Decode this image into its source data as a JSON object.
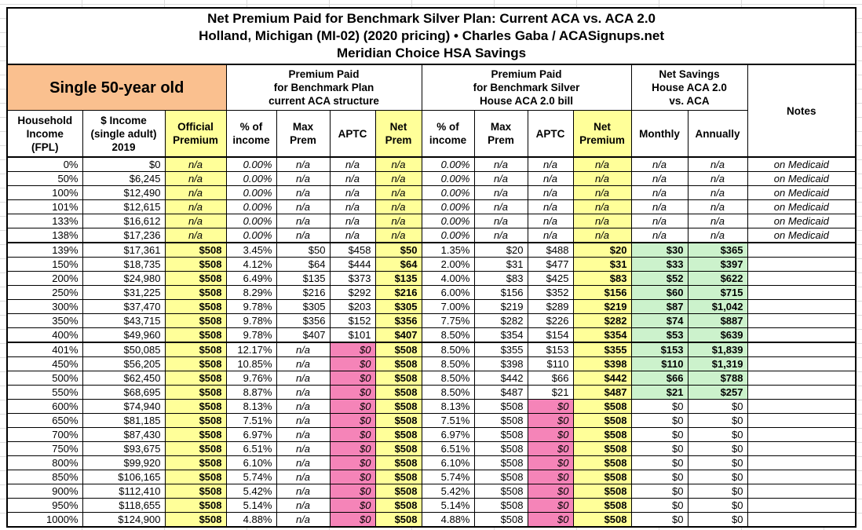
{
  "title": {
    "lines": [
      "Net Premium Paid for Benchmark Silver Plan: Current ACA vs. ACA 2.0",
      "Holland, Michigan (MI-02) (2020 pricing) • Charles Gaba / ACASignups.net",
      "Meridian Choice HSA Savings"
    ]
  },
  "colors": {
    "orange": "#FAC08F",
    "yellow": "#FFFF99",
    "pink": "#F584B8",
    "green": "#CCF2CC",
    "grid": "#dcdcdc",
    "border": "#000000"
  },
  "group_headers": [
    {
      "id": "subject",
      "lines": [
        "Single 50-year old"
      ]
    },
    {
      "id": "aca",
      "lines": [
        "Premium Paid",
        "for Benchmark Plan",
        "current ACA structure"
      ]
    },
    {
      "id": "aca2",
      "lines": [
        "Premium Paid",
        "for Benchmark Silver",
        "House ACA 2.0 bill"
      ]
    },
    {
      "id": "savings",
      "lines": [
        "Net Savings",
        "House ACA 2.0",
        "vs. ACA"
      ]
    },
    {
      "id": "notes",
      "lines": [
        "Notes"
      ]
    }
  ],
  "column_headers": [
    {
      "lines": [
        "Household",
        "Income",
        "(FPL)"
      ]
    },
    {
      "lines": [
        "$ Income",
        "(single adult)",
        "2019"
      ]
    },
    {
      "lines": [
        "Official",
        "Premium"
      ]
    },
    {
      "lines": [
        "% of",
        "income"
      ]
    },
    {
      "lines": [
        "Max",
        "Prem"
      ]
    },
    {
      "lines": [
        "APTC"
      ]
    },
    {
      "lines": [
        "Net",
        "Prem"
      ]
    },
    {
      "lines": [
        "% of",
        "income"
      ]
    },
    {
      "lines": [
        "Max",
        "Prem"
      ]
    },
    {
      "lines": [
        "APTC"
      ]
    },
    {
      "lines": [
        "Net",
        "Premium"
      ]
    },
    {
      "lines": [
        "Monthly"
      ]
    },
    {
      "lines": [
        "Annually"
      ]
    }
  ],
  "column_keys": [
    "fpl",
    "income",
    "official_premium",
    "aca_pct_income",
    "aca_max_prem",
    "aca_aptc",
    "aca_net_prem",
    "aca2_pct_income",
    "aca2_max_prem",
    "aca2_aptc",
    "aca2_net_premium",
    "savings_monthly",
    "savings_annually",
    "notes"
  ],
  "rows": [
    {
      "s": "m",
      "c": [
        "0%",
        "$0",
        "n/a",
        "0.00%",
        "n/a",
        "n/a",
        "n/a",
        "0.00%",
        "n/a",
        "n/a",
        "n/a",
        "n/a",
        "n/a",
        "on Medicaid"
      ]
    },
    {
      "s": "m",
      "c": [
        "50%",
        "$6,245",
        "n/a",
        "0.00%",
        "n/a",
        "n/a",
        "n/a",
        "0.00%",
        "n/a",
        "n/a",
        "n/a",
        "n/a",
        "n/a",
        "on Medicaid"
      ]
    },
    {
      "s": "m",
      "c": [
        "100%",
        "$12,490",
        "n/a",
        "0.00%",
        "n/a",
        "n/a",
        "n/a",
        "0.00%",
        "n/a",
        "n/a",
        "n/a",
        "n/a",
        "n/a",
        "on Medicaid"
      ]
    },
    {
      "s": "m",
      "c": [
        "101%",
        "$12,615",
        "n/a",
        "0.00%",
        "n/a",
        "n/a",
        "n/a",
        "0.00%",
        "n/a",
        "n/a",
        "n/a",
        "n/a",
        "n/a",
        "on Medicaid"
      ]
    },
    {
      "s": "m",
      "c": [
        "133%",
        "$16,612",
        "n/a",
        "0.00%",
        "n/a",
        "n/a",
        "n/a",
        "0.00%",
        "n/a",
        "n/a",
        "n/a",
        "n/a",
        "n/a",
        "on Medicaid"
      ]
    },
    {
      "s": "m",
      "c": [
        "138%",
        "$17,236",
        "n/a",
        "0.00%",
        "n/a",
        "n/a",
        "n/a",
        "0.00%",
        "n/a",
        "n/a",
        "n/a",
        "n/a",
        "n/a",
        "on Medicaid"
      ]
    },
    {
      "s": "g",
      "c": [
        "139%",
        "$17,361",
        "$508",
        "3.45%",
        "$50",
        "$458",
        "$50",
        "1.35%",
        "$20",
        "$488",
        "$20",
        "$30",
        "$365",
        ""
      ]
    },
    {
      "s": "g",
      "c": [
        "150%",
        "$18,735",
        "$508",
        "4.12%",
        "$64",
        "$444",
        "$64",
        "2.00%",
        "$31",
        "$477",
        "$31",
        "$33",
        "$397",
        ""
      ]
    },
    {
      "s": "g",
      "c": [
        "200%",
        "$24,980",
        "$508",
        "6.49%",
        "$135",
        "$373",
        "$135",
        "4.00%",
        "$83",
        "$425",
        "$83",
        "$52",
        "$622",
        ""
      ]
    },
    {
      "s": "g",
      "c": [
        "250%",
        "$31,225",
        "$508",
        "8.29%",
        "$216",
        "$292",
        "$216",
        "6.00%",
        "$156",
        "$352",
        "$156",
        "$60",
        "$715",
        ""
      ]
    },
    {
      "s": "g",
      "c": [
        "300%",
        "$37,470",
        "$508",
        "9.78%",
        "$305",
        "$203",
        "$305",
        "7.00%",
        "$219",
        "$289",
        "$219",
        "$87",
        "$1,042",
        ""
      ]
    },
    {
      "s": "g",
      "c": [
        "350%",
        "$43,715",
        "$508",
        "9.78%",
        "$356",
        "$152",
        "$356",
        "7.75%",
        "$282",
        "$226",
        "$282",
        "$74",
        "$887",
        ""
      ]
    },
    {
      "s": "g",
      "c": [
        "400%",
        "$49,960",
        "$508",
        "9.78%",
        "$407",
        "$101",
        "$407",
        "8.50%",
        "$354",
        "$154",
        "$354",
        "$53",
        "$639",
        ""
      ]
    },
    {
      "s": "g",
      "c": [
        "401%",
        "$50,085",
        "$508",
        "12.17%",
        "n/a",
        "$0",
        "$508",
        "8.50%",
        "$355",
        "$153",
        "$355",
        "$153",
        "$1,839",
        ""
      ]
    },
    {
      "s": "g",
      "c": [
        "450%",
        "$56,205",
        "$508",
        "10.85%",
        "n/a",
        "$0",
        "$508",
        "8.50%",
        "$398",
        "$110",
        "$398",
        "$110",
        "$1,319",
        ""
      ]
    },
    {
      "s": "g",
      "c": [
        "500%",
        "$62,450",
        "$508",
        "9.76%",
        "n/a",
        "$0",
        "$508",
        "8.50%",
        "$442",
        "$66",
        "$442",
        "$66",
        "$788",
        ""
      ]
    },
    {
      "s": "g",
      "c": [
        "550%",
        "$68,695",
        "$508",
        "8.87%",
        "n/a",
        "$0",
        "$508",
        "8.50%",
        "$487",
        "$21",
        "$487",
        "$21",
        "$257",
        ""
      ]
    },
    {
      "s": "p",
      "c": [
        "600%",
        "$74,940",
        "$508",
        "8.13%",
        "n/a",
        "$0",
        "$508",
        "8.13%",
        "$508",
        "$0",
        "$508",
        "$0",
        "$0",
        ""
      ]
    },
    {
      "s": "p",
      "c": [
        "650%",
        "$81,185",
        "$508",
        "7.51%",
        "n/a",
        "$0",
        "$508",
        "7.51%",
        "$508",
        "$0",
        "$508",
        "$0",
        "$0",
        ""
      ]
    },
    {
      "s": "p",
      "c": [
        "700%",
        "$87,430",
        "$508",
        "6.97%",
        "n/a",
        "$0",
        "$508",
        "6.97%",
        "$508",
        "$0",
        "$508",
        "$0",
        "$0",
        ""
      ]
    },
    {
      "s": "p",
      "c": [
        "750%",
        "$93,675",
        "$508",
        "6.51%",
        "n/a",
        "$0",
        "$508",
        "6.51%",
        "$508",
        "$0",
        "$508",
        "$0",
        "$0",
        ""
      ]
    },
    {
      "s": "p",
      "c": [
        "800%",
        "$99,920",
        "$508",
        "6.10%",
        "n/a",
        "$0",
        "$508",
        "6.10%",
        "$508",
        "$0",
        "$508",
        "$0",
        "$0",
        ""
      ]
    },
    {
      "s": "p",
      "c": [
        "850%",
        "$106,165",
        "$508",
        "5.74%",
        "n/a",
        "$0",
        "$508",
        "5.74%",
        "$508",
        "$0",
        "$508",
        "$0",
        "$0",
        ""
      ]
    },
    {
      "s": "p",
      "c": [
        "900%",
        "$112,410",
        "$508",
        "5.42%",
        "n/a",
        "$0",
        "$508",
        "5.42%",
        "$508",
        "$0",
        "$508",
        "$0",
        "$0",
        ""
      ]
    },
    {
      "s": "p",
      "c": [
        "950%",
        "$118,655",
        "$508",
        "5.14%",
        "n/a",
        "$0",
        "$508",
        "5.14%",
        "$508",
        "$0",
        "$508",
        "$0",
        "$0",
        ""
      ]
    },
    {
      "s": "p",
      "c": [
        "1000%",
        "$124,900",
        "$508",
        "4.88%",
        "n/a",
        "$0",
        "$508",
        "4.88%",
        "$508",
        "$0",
        "$508",
        "$0",
        "$0",
        ""
      ]
    }
  ]
}
